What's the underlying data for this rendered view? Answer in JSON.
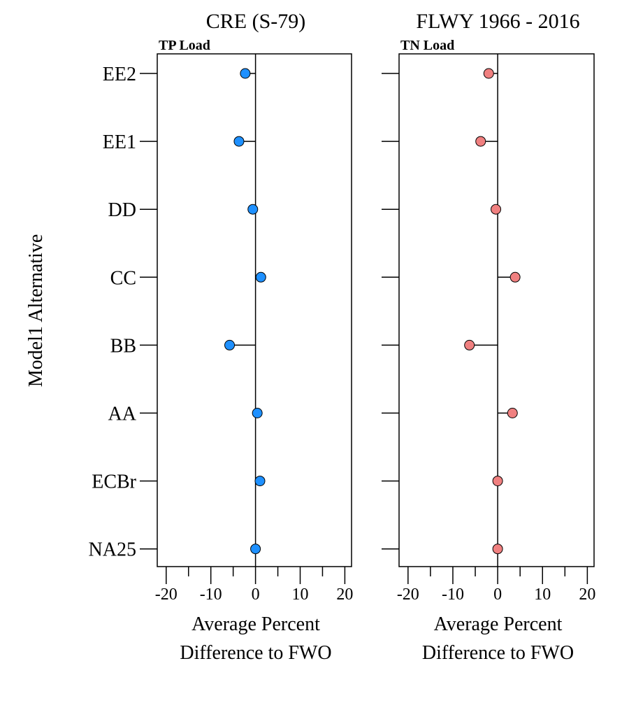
{
  "chart_data": [
    {
      "type": "scatter",
      "title": "CRE (S-79)",
      "subtitle": "TP Load",
      "ylabel": "Model1 Alternative",
      "xlabel_lines": [
        "Average Percent",
        "Difference to FWO"
      ],
      "categories": [
        "EE2",
        "EE1",
        "DD",
        "CC",
        "BB",
        "AA",
        "ECBr",
        "NA25"
      ],
      "values": [
        -2.3,
        -3.7,
        -0.6,
        1.2,
        -5.8,
        0.4,
        1.0,
        0.0
      ],
      "xlim": [
        -22,
        21.5
      ],
      "xticks": [
        -20,
        -10,
        0,
        10,
        20
      ],
      "xtick_labels": [
        "-20",
        "-10",
        "0",
        "10",
        "20"
      ],
      "minor_xticks": [
        -15,
        -5,
        5,
        15
      ],
      "reference_line": 0,
      "color": "#1e90ff"
    },
    {
      "type": "scatter",
      "title": "FLWY 1966 - 2016",
      "subtitle": "TN Load",
      "xlabel_lines": [
        "Average Percent",
        "Difference to FWO"
      ],
      "categories": [
        "EE2",
        "EE1",
        "DD",
        "CC",
        "BB",
        "AA",
        "ECBr",
        "NA25"
      ],
      "values": [
        -2.0,
        -3.8,
        -0.4,
        3.9,
        -6.3,
        3.3,
        0.0,
        0.0
      ],
      "xlim": [
        -22,
        21.5
      ],
      "xticks": [
        -20,
        -10,
        0,
        10,
        20
      ],
      "xtick_labels": [
        "-20",
        "-10",
        "0",
        "10",
        "20"
      ],
      "minor_xticks": [
        -15,
        -5,
        5,
        15
      ],
      "reference_line": 0,
      "color": "#f08080"
    }
  ]
}
